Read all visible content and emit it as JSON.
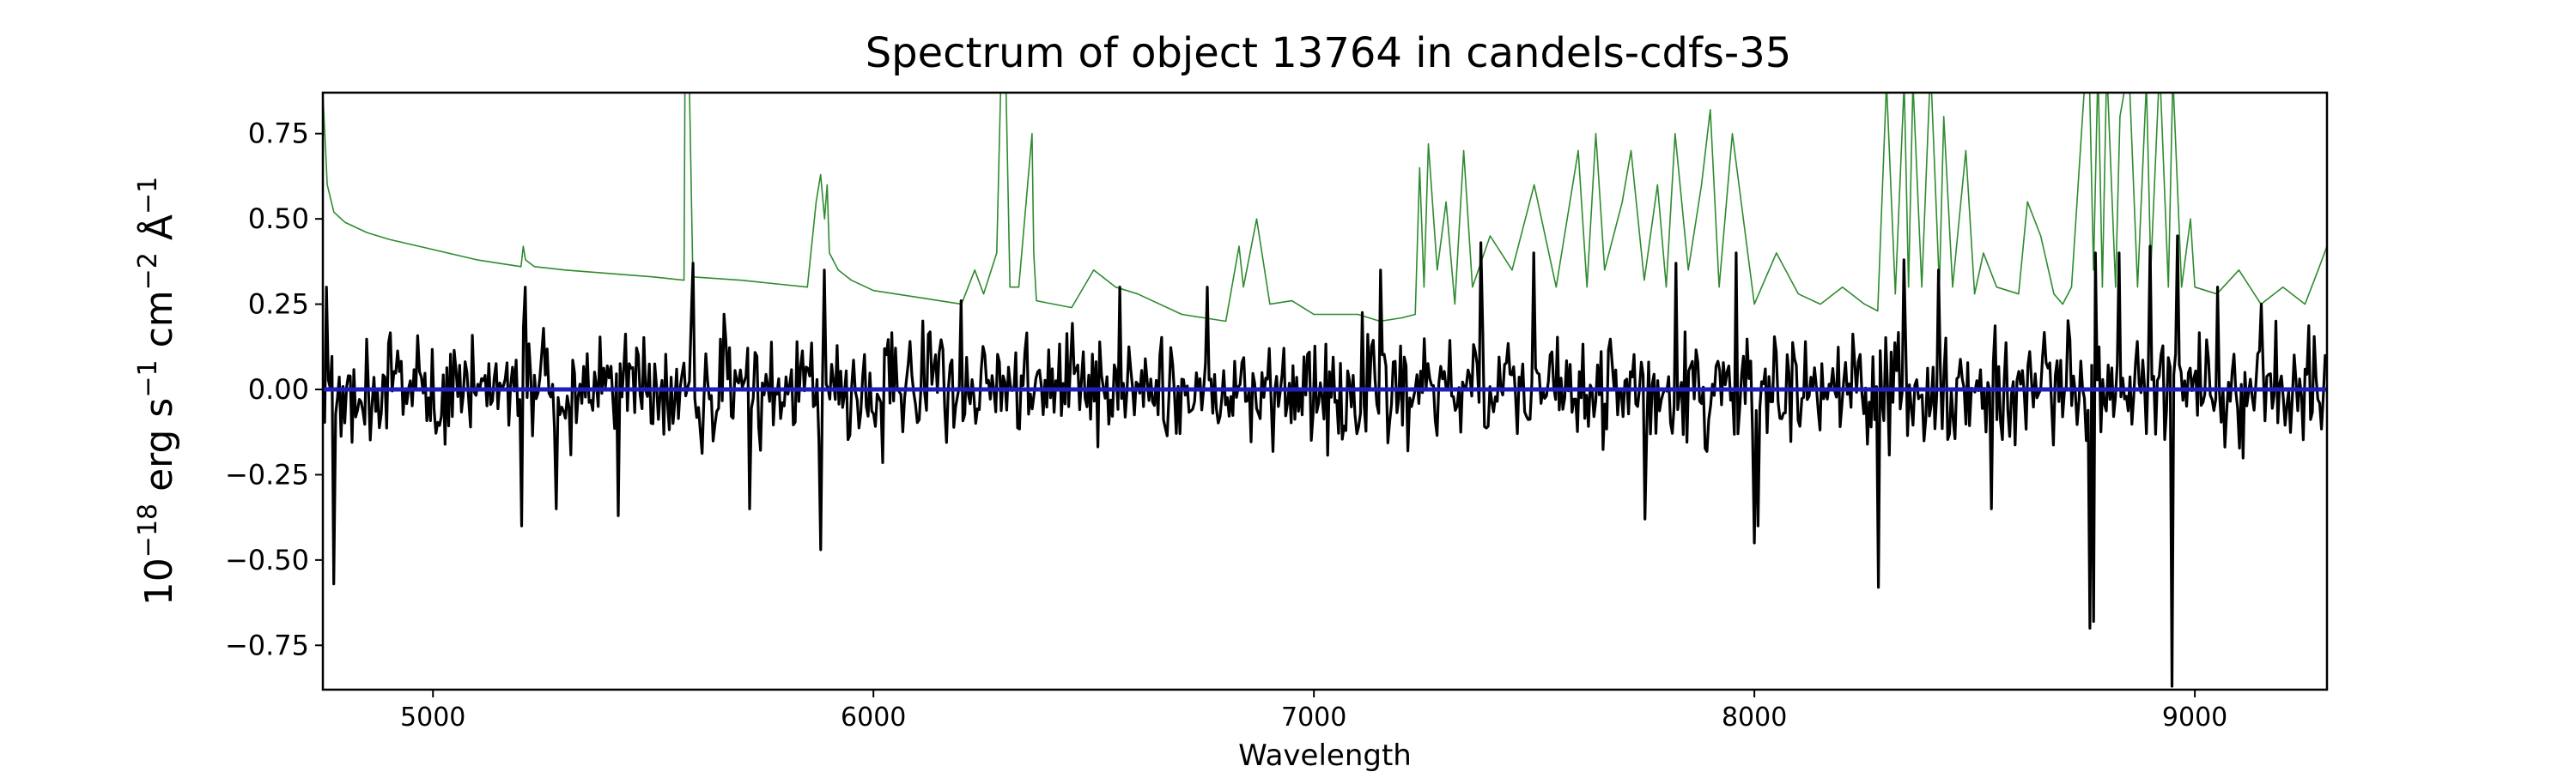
{
  "chart_data": {
    "type": "line",
    "title": "Spectrum of object 13764 in candels-cdfs-35",
    "xlabel": "Wavelength",
    "ylabel_parts": {
      "base": "10",
      "exp1": "−18",
      "erg": " erg s",
      "exp2": "−1",
      "cm": " cm",
      "exp3": "−2",
      "ang": " Å",
      "exp4": "−1"
    },
    "xlim": [
      4750,
      9300
    ],
    "ylim": [
      -0.88,
      0.87
    ],
    "xticks": [
      5000,
      6000,
      7000,
      8000,
      9000
    ],
    "xtick_labels": [
      "5000",
      "6000",
      "7000",
      "8000",
      "9000"
    ],
    "yticks": [
      -0.75,
      -0.5,
      -0.25,
      0.0,
      0.25,
      0.5,
      0.75
    ],
    "ytick_labels": [
      "−0.75",
      "−0.50",
      "−0.25",
      "0.00",
      "0.25",
      "0.50",
      "0.75"
    ],
    "grid": false,
    "series": [
      {
        "color": "#2e8b2e",
        "role": "sky",
        "x": [
          4750,
          4760,
          4775,
          4800,
          4850,
          4900,
          5000,
          5100,
          5150,
          5200,
          5205,
          5210,
          5230,
          5300,
          5400,
          5500,
          5570,
          5572,
          5577,
          5582,
          5590,
          5700,
          5850,
          5870,
          5880,
          5889,
          5895,
          5900,
          5920,
          5950,
          6000,
          6100,
          6200,
          6230,
          6250,
          6280,
          6290,
          6300,
          6310,
          6330,
          6360,
          6364,
          6370,
          6450,
          6500,
          6550,
          6600,
          6700,
          6750,
          6800,
          6830,
          6840,
          6870,
          6900,
          6950,
          7000,
          7100,
          7150,
          7200,
          7230,
          7240,
          7250,
          7260,
          7280,
          7300,
          7320,
          7340,
          7360,
          7400,
          7450,
          7500,
          7550,
          7600,
          7620,
          7640,
          7660,
          7700,
          7720,
          7750,
          7780,
          7800,
          7820,
          7850,
          7880,
          7900,
          7920,
          7950,
          8000,
          8050,
          8100,
          8150,
          8200,
          8250,
          8280,
          8300,
          8320,
          8340,
          8350,
          8360,
          8380,
          8400,
          8420,
          8430,
          8450,
          8480,
          8500,
          8520,
          8550,
          8600,
          8620,
          8650,
          8680,
          8700,
          8720,
          8750,
          8760,
          8770,
          8780,
          8790,
          8800,
          8820,
          8830,
          8850,
          8870,
          8890,
          8900,
          8920,
          8940,
          8950,
          8970,
          8990,
          9000,
          9050,
          9100,
          9150,
          9200,
          9250,
          9280,
          9300
        ],
        "y": [
          0.87,
          0.6,
          0.52,
          0.49,
          0.46,
          0.44,
          0.41,
          0.38,
          0.37,
          0.36,
          0.42,
          0.38,
          0.36,
          0.35,
          0.34,
          0.33,
          0.32,
          0.9,
          0.95,
          0.9,
          0.33,
          0.32,
          0.3,
          0.55,
          0.63,
          0.5,
          0.6,
          0.4,
          0.35,
          0.32,
          0.29,
          0.27,
          0.25,
          0.35,
          0.28,
          0.4,
          0.95,
          0.95,
          0.3,
          0.3,
          0.75,
          0.4,
          0.26,
          0.24,
          0.35,
          0.3,
          0.28,
          0.22,
          0.21,
          0.2,
          0.42,
          0.3,
          0.5,
          0.25,
          0.26,
          0.22,
          0.22,
          0.2,
          0.21,
          0.22,
          0.65,
          0.3,
          0.72,
          0.35,
          0.55,
          0.25,
          0.7,
          0.3,
          0.45,
          0.35,
          0.6,
          0.3,
          0.7,
          0.3,
          0.75,
          0.35,
          0.55,
          0.7,
          0.32,
          0.6,
          0.3,
          0.75,
          0.35,
          0.6,
          0.82,
          0.3,
          0.75,
          0.25,
          0.4,
          0.28,
          0.25,
          0.3,
          0.25,
          0.23,
          0.9,
          0.28,
          0.9,
          0.3,
          0.9,
          0.3,
          0.95,
          0.3,
          0.8,
          0.3,
          0.7,
          0.28,
          0.4,
          0.3,
          0.28,
          0.55,
          0.45,
          0.28,
          0.25,
          0.3,
          0.9,
          0.95,
          0.35,
          0.95,
          0.3,
          0.95,
          0.3,
          0.8,
          0.95,
          0.3,
          0.9,
          0.35,
          0.95,
          0.3,
          0.92,
          0.3,
          0.5,
          0.3,
          0.28,
          0.35,
          0.25,
          0.3,
          0.25,
          0.35,
          0.42
        ]
      },
      {
        "color": "#000000",
        "role": "object flux",
        "noise_seed": 13764,
        "noise_points": 1100,
        "noise_sigma": 0.11,
        "x": [
          4760,
          4775,
          5200,
          5210,
          5280,
          5420,
          5590,
          5720,
          5880,
          5890,
          6200,
          6560,
          6760,
          7150,
          7380,
          7500,
          7750,
          7820,
          7960,
          8000,
          8010,
          8280,
          8340,
          8420,
          8540,
          8760,
          8770,
          8775,
          8830,
          8900,
          8950,
          8960,
          9050,
          9150
        ],
        "y": [
          0.3,
          -0.57,
          -0.4,
          0.3,
          -0.35,
          -0.37,
          0.37,
          -0.35,
          -0.47,
          0.35,
          0.26,
          0.3,
          0.3,
          0.35,
          0.43,
          0.4,
          -0.38,
          0.37,
          0.4,
          -0.45,
          -0.4,
          -0.58,
          0.38,
          0.35,
          -0.35,
          -0.7,
          -0.68,
          0.4,
          0.4,
          0.42,
          -0.87,
          0.45,
          0.3,
          0.25
        ]
      },
      {
        "color": "#1f1fbf",
        "role": "model",
        "x": [
          4750,
          9300
        ],
        "y": [
          0.0,
          0.0
        ]
      }
    ]
  }
}
